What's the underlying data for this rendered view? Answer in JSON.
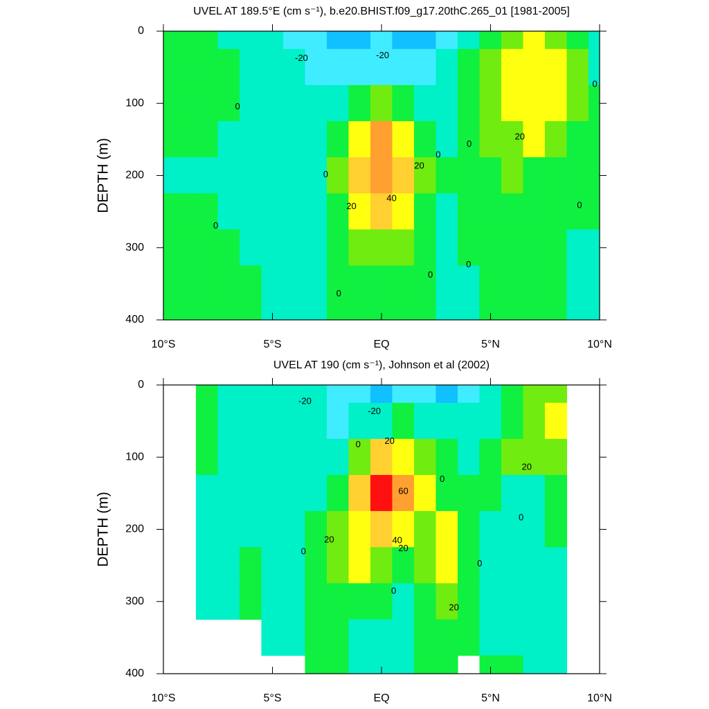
{
  "chart_data": [
    {
      "type": "contour",
      "title": "UVEL AT 189.5°E (cm s⁻¹), b.e20.BHIST.f09_g17.20thC.265_01 [1981-2005]",
      "ylabel": "DEPTH (m)",
      "x": [
        -10,
        -9,
        -8,
        -7,
        -6,
        -5,
        -4,
        -3,
        -2,
        -1,
        0,
        1,
        2,
        3,
        4,
        5,
        6,
        7,
        8,
        9,
        10
      ],
      "y": [
        0,
        50,
        100,
        150,
        200,
        250,
        300,
        350,
        400
      ],
      "xlim": [
        -10,
        10
      ],
      "ylim": [
        400,
        0
      ],
      "xticks": [
        {
          "value": -10,
          "label": "10°S"
        },
        {
          "value": -5,
          "label": "5°S"
        },
        {
          "value": 0,
          "label": "EQ"
        },
        {
          "value": 5,
          "label": "5°N"
        },
        {
          "value": 10,
          "label": "10°N"
        }
      ],
      "yticks": [
        0,
        100,
        200,
        300,
        400
      ],
      "levels": [
        -30,
        -20,
        -10,
        0,
        10,
        20,
        30,
        40,
        50,
        60,
        70
      ],
      "colors": [
        "#1090ff",
        "#10c0ff",
        "#40ecff",
        "#00f0c8",
        "#10f040",
        "#70ec10",
        "#ffff10",
        "#ffd030",
        "#ffa030",
        "#ff8030",
        "#ff5020",
        "#ff1010"
      ],
      "z": [
        [
          5,
          5,
          3,
          -2,
          -5,
          -8,
          -12,
          -15,
          -22,
          -25,
          -20,
          -22,
          -25,
          -15,
          -5,
          5,
          15,
          20,
          15,
          5,
          -2
        ],
        [
          5,
          6,
          5,
          2,
          -3,
          -6,
          -10,
          -12,
          -18,
          -20,
          -12,
          -18,
          -15,
          -8,
          2,
          12,
          22,
          28,
          22,
          10,
          -2
        ],
        [
          3,
          5,
          5,
          2,
          -3,
          -5,
          -8,
          -10,
          -5,
          5,
          15,
          8,
          -2,
          -5,
          3,
          12,
          22,
          28,
          22,
          10,
          2
        ],
        [
          2,
          1,
          2,
          -2,
          -4,
          -5,
          -6,
          -4,
          5,
          25,
          45,
          25,
          5,
          -2,
          3,
          10,
          18,
          22,
          15,
          8,
          2
        ],
        [
          -2,
          -4,
          -3,
          -4,
          -5,
          -5,
          -5,
          -2,
          10,
          30,
          42,
          30,
          10,
          0,
          3,
          8,
          10,
          9,
          7,
          5,
          2
        ],
        [
          2,
          3,
          2,
          -2,
          -4,
          -4,
          -5,
          -2,
          8,
          25,
          35,
          22,
          8,
          -1,
          3,
          5,
          6,
          5,
          4,
          2,
          1
        ],
        [
          5,
          6,
          5,
          2,
          -2,
          -4,
          -5,
          -3,
          5,
          12,
          15,
          10,
          5,
          -1,
          2,
          4,
          4,
          4,
          3,
          -1,
          -2
        ],
        [
          6,
          7,
          7,
          5,
          2,
          -3,
          -5,
          -3,
          2,
          5,
          5,
          4,
          2,
          -2,
          -1,
          3,
          3,
          3,
          2,
          -2,
          -3
        ],
        [
          7,
          7,
          7,
          6,
          4,
          -2,
          -4,
          -3,
          1,
          3,
          3,
          2,
          0,
          -2,
          -2,
          2,
          2,
          2,
          2,
          -2,
          -3
        ]
      ],
      "contour_labels": [
        {
          "value": -20,
          "x": -3.67,
          "y": 38
        },
        {
          "value": -20,
          "x": 0.05,
          "y": 34
        },
        {
          "value": 0,
          "x": -6.6,
          "y": 105
        },
        {
          "value": 0,
          "x": -2.56,
          "y": 199
        },
        {
          "value": 20,
          "x": 1.73,
          "y": 187
        },
        {
          "value": 40,
          "x": 0.46,
          "y": 232
        },
        {
          "value": 20,
          "x": -1.38,
          "y": 243
        },
        {
          "value": 0,
          "x": 2.6,
          "y": 172
        },
        {
          "value": 0,
          "x": 4.02,
          "y": 157
        },
        {
          "value": 20,
          "x": 6.34,
          "y": 147
        },
        {
          "value": 0,
          "x": 9.78,
          "y": 74
        },
        {
          "value": 0,
          "x": 9.08,
          "y": 242
        },
        {
          "value": 0,
          "x": -7.6,
          "y": 270
        },
        {
          "value": 0,
          "x": 2.24,
          "y": 338
        },
        {
          "value": 0,
          "x": 3.99,
          "y": 324
        },
        {
          "value": 0,
          "x": -1.96,
          "y": 364
        }
      ]
    },
    {
      "type": "contour",
      "title": "UVEL AT 190 (cm s⁻¹), Johnson et al (2002)",
      "ylabel": "DEPTH (m)",
      "x": [
        -10,
        -9,
        -8,
        -7,
        -6,
        -5,
        -4,
        -3,
        -2,
        -1,
        0,
        1,
        2,
        3,
        4,
        5,
        6,
        7,
        8,
        9,
        10
      ],
      "y": [
        0,
        50,
        100,
        150,
        200,
        250,
        300,
        350,
        400
      ],
      "xlim": [
        -10,
        10
      ],
      "ylim": [
        400,
        0
      ],
      "xticks": [
        {
          "value": -10,
          "label": "10°S"
        },
        {
          "value": -5,
          "label": "5°S"
        },
        {
          "value": 0,
          "label": "EQ"
        },
        {
          "value": 5,
          "label": "5°N"
        },
        {
          "value": 10,
          "label": "10°N"
        }
      ],
      "yticks": [
        0,
        100,
        200,
        300,
        400
      ],
      "levels": [
        -30,
        -20,
        -10,
        0,
        10,
        20,
        30,
        40,
        50,
        60,
        70
      ],
      "colors": [
        "#1090ff",
        "#10c0ff",
        "#40ecff",
        "#00f0c8",
        "#10f040",
        "#70ec10",
        "#ffff10",
        "#ffd030",
        "#ffa030",
        "#ff8030",
        "#ff5020",
        "#ff1010"
      ],
      "z": [
        [
          null,
          null,
          3,
          -5,
          -8,
          -8,
          -9,
          -10,
          -12,
          -15,
          -22,
          -20,
          -18,
          -25,
          -12,
          -5,
          5,
          10,
          18,
          null,
          null
        ],
        [
          null,
          null,
          2,
          -5,
          -7,
          -8,
          -9,
          -10,
          -13,
          -10,
          -5,
          0,
          -5,
          -10,
          -8,
          -3,
          8,
          18,
          22,
          null,
          null
        ],
        [
          null,
          null,
          2,
          -5,
          -8,
          -8,
          -8,
          -6,
          -2,
          10,
          30,
          25,
          10,
          2,
          -3,
          2,
          10,
          12,
          10,
          null,
          null
        ],
        [
          null,
          null,
          -2,
          -5,
          -6,
          -7,
          -8,
          -5,
          5,
          30,
          70,
          45,
          22,
          5,
          0,
          3,
          -2,
          -3,
          2,
          null,
          null
        ],
        [
          null,
          null,
          -3,
          -4,
          -5,
          -6,
          -2,
          2,
          10,
          25,
          35,
          20,
          10,
          22,
          5,
          -3,
          -3,
          -2,
          3,
          null,
          null
        ],
        [
          null,
          null,
          -3,
          -2,
          3,
          -4,
          -5,
          2,
          15,
          20,
          10,
          5,
          10,
          25,
          5,
          -2,
          -4,
          -3,
          -3,
          null,
          null
        ],
        [
          null,
          null,
          -3,
          -2,
          3,
          -4,
          -5,
          3,
          8,
          5,
          2,
          -2,
          5,
          18,
          4,
          -3,
          -4,
          -4,
          -3,
          null,
          null
        ],
        [
          null,
          null,
          null,
          null,
          null,
          -4,
          -3,
          3,
          5,
          -2,
          -5,
          -3,
          3,
          8,
          2,
          -2,
          -4,
          -4,
          -4,
          null,
          null
        ],
        [
          null,
          null,
          null,
          null,
          null,
          null,
          null,
          3,
          4,
          -2,
          -5,
          -3,
          2,
          3,
          null,
          2,
          0,
          -3,
          -4,
          null,
          null
        ]
      ],
      "contour_labels": [
        {
          "value": -20,
          "x": -3.51,
          "y": 23
        },
        {
          "value": -20,
          "x": -0.33,
          "y": 37
        },
        {
          "value": 0,
          "x": -1.07,
          "y": 83
        },
        {
          "value": 20,
          "x": 0.37,
          "y": 78
        },
        {
          "value": 0,
          "x": 2.78,
          "y": 131
        },
        {
          "value": 60,
          "x": 1.0,
          "y": 148
        },
        {
          "value": 20,
          "x": -2.4,
          "y": 215
        },
        {
          "value": 40,
          "x": 0.72,
          "y": 216
        },
        {
          "value": 20,
          "x": 1.0,
          "y": 227
        },
        {
          "value": 0,
          "x": -3.58,
          "y": 231
        },
        {
          "value": 0,
          "x": 0.56,
          "y": 286
        },
        {
          "value": 20,
          "x": 3.32,
          "y": 309
        },
        {
          "value": 0,
          "x": 4.5,
          "y": 248
        },
        {
          "value": 20,
          "x": 6.66,
          "y": 114
        },
        {
          "value": 0,
          "x": 6.4,
          "y": 184
        }
      ]
    }
  ]
}
